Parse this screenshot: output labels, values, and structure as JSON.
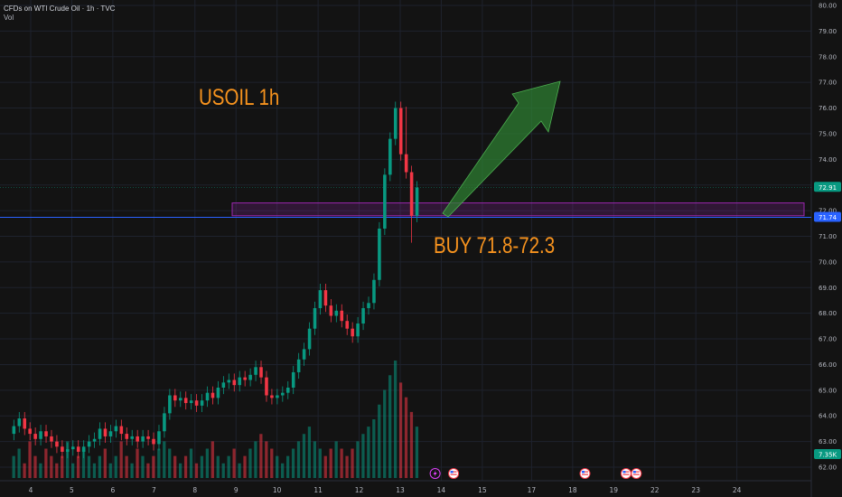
{
  "header": {
    "symbol_title": "CFDs on WTI Crude Oil · 1h · TVC",
    "volume_label": "Vol"
  },
  "annotations": {
    "title": "USOIL 1h",
    "buy_label": "BUY 71.8-72.3",
    "buy_zone": [
      71.8,
      72.3
    ]
  },
  "price_tags": [
    {
      "label": "72.91",
      "value": 72.91,
      "color": "#089981"
    },
    {
      "label": "71.74",
      "value": 71.74,
      "color": "#2962ff"
    },
    {
      "label": "7.35K",
      "value": 7350,
      "color": "#089981",
      "axis": "volume"
    }
  ],
  "colors": {
    "up": "#089981",
    "down": "#f23645",
    "zone": "#9c27b0",
    "arrow": "#2e7d32",
    "hline": "#2962ff",
    "text_orange": "#f7931e"
  },
  "event_icons": [
    {
      "icon": "lightning-icon",
      "day": 13.85
    },
    {
      "icon": "us-flag-icon",
      "day": 14.3
    },
    {
      "icon": "us-flag-icon",
      "day": 17.5
    },
    {
      "icon": "us-flag-icon",
      "day": 18.5
    },
    {
      "icon": "us-flag-icon",
      "day": 18.75
    }
  ],
  "chart_data": {
    "type": "candlestick",
    "title": "CFDs on WTI Crude Oil · 1h · TVC",
    "y_ticks": [
      "80.00",
      "79.00",
      "78.00",
      "77.00",
      "76.00",
      "75.00",
      "74.00",
      "73.00",
      "72.00",
      "71.00",
      "70.00",
      "69.00",
      "68.00",
      "67.00",
      "66.00",
      "65.00",
      "64.00",
      "63.00",
      "62.00"
    ],
    "ylim": [
      61.5,
      80.2
    ],
    "x_ticks": [
      "4",
      "5",
      "6",
      "7",
      "8",
      "9",
      "10",
      "11",
      "12",
      "13",
      "14",
      "15",
      "17",
      "18",
      "19",
      "22",
      "23",
      "24"
    ],
    "x_tick_days": [
      4,
      5,
      6,
      7,
      8,
      9,
      10,
      11,
      12,
      13,
      14,
      15,
      16.2,
      17.2,
      18.2,
      19.2,
      20.2,
      21.2
    ],
    "candles": [
      {
        "o": 63.3,
        "c": 63.6
      },
      {
        "o": 63.6,
        "c": 63.9
      },
      {
        "o": 63.9,
        "c": 63.5
      },
      {
        "o": 63.5,
        "c": 63.3
      },
      {
        "o": 63.3,
        "c": 63.1
      },
      {
        "o": 63.1,
        "c": 63.4
      },
      {
        "o": 63.4,
        "c": 63.2
      },
      {
        "o": 63.2,
        "c": 63.0
      },
      {
        "o": 63.0,
        "c": 62.8
      },
      {
        "o": 62.8,
        "c": 62.6
      },
      {
        "o": 62.6,
        "c": 62.7
      },
      {
        "o": 62.7,
        "c": 62.8
      },
      {
        "o": 62.8,
        "c": 62.6
      },
      {
        "o": 62.6,
        "c": 62.8
      },
      {
        "o": 62.8,
        "c": 63.0
      },
      {
        "o": 63.0,
        "c": 63.1
      },
      {
        "o": 63.1,
        "c": 63.5
      },
      {
        "o": 63.5,
        "c": 63.2
      },
      {
        "o": 63.2,
        "c": 63.4
      },
      {
        "o": 63.4,
        "c": 63.6
      },
      {
        "o": 63.6,
        "c": 63.3
      },
      {
        "o": 63.3,
        "c": 63.1
      },
      {
        "o": 63.1,
        "c": 63.2
      },
      {
        "o": 63.2,
        "c": 63.0
      },
      {
        "o": 63.0,
        "c": 63.2
      },
      {
        "o": 63.2,
        "c": 63.1
      },
      {
        "o": 63.1,
        "c": 62.9
      },
      {
        "o": 62.9,
        "c": 63.4
      },
      {
        "o": 63.4,
        "c": 64.1
      },
      {
        "o": 64.1,
        "c": 64.8
      },
      {
        "o": 64.8,
        "c": 64.6
      },
      {
        "o": 64.6,
        "c": 64.7
      },
      {
        "o": 64.7,
        "c": 64.5
      },
      {
        "o": 64.5,
        "c": 64.6
      },
      {
        "o": 64.6,
        "c": 64.4
      },
      {
        "o": 64.4,
        "c": 64.6
      },
      {
        "o": 64.6,
        "c": 64.9
      },
      {
        "o": 64.9,
        "c": 64.7
      },
      {
        "o": 64.7,
        "c": 65.1
      },
      {
        "o": 65.1,
        "c": 65.3
      },
      {
        "o": 65.3,
        "c": 65.4
      },
      {
        "o": 65.4,
        "c": 65.2
      },
      {
        "o": 65.2,
        "c": 65.5
      },
      {
        "o": 65.5,
        "c": 65.4
      },
      {
        "o": 65.4,
        "c": 65.6
      },
      {
        "o": 65.6,
        "c": 65.9
      },
      {
        "o": 65.9,
        "c": 65.5
      },
      {
        "o": 65.5,
        "c": 64.8
      },
      {
        "o": 64.8,
        "c": 64.7
      },
      {
        "o": 64.7,
        "c": 64.8
      },
      {
        "o": 64.8,
        "c": 64.9
      },
      {
        "o": 64.9,
        "c": 65.1
      },
      {
        "o": 65.1,
        "c": 65.7
      },
      {
        "o": 65.7,
        "c": 66.2
      },
      {
        "o": 66.2,
        "c": 66.6
      },
      {
        "o": 66.6,
        "c": 67.4
      },
      {
        "o": 67.4,
        "c": 68.2
      },
      {
        "o": 68.2,
        "c": 68.9
      },
      {
        "o": 68.9,
        "c": 68.3
      },
      {
        "o": 68.3,
        "c": 67.9
      },
      {
        "o": 67.9,
        "c": 68.1
      },
      {
        "o": 68.1,
        "c": 67.7
      },
      {
        "o": 67.7,
        "c": 67.4
      },
      {
        "o": 67.4,
        "c": 67.1
      },
      {
        "o": 67.1,
        "c": 67.6
      },
      {
        "o": 67.6,
        "c": 68.2
      },
      {
        "o": 68.2,
        "c": 68.4
      },
      {
        "o": 68.4,
        "c": 69.3
      },
      {
        "o": 69.3,
        "c": 71.3
      },
      {
        "o": 71.3,
        "c": 73.4
      },
      {
        "o": 73.4,
        "c": 74.8
      },
      {
        "o": 74.8,
        "c": 76.0
      },
      {
        "o": 76.0,
        "c": 74.2
      },
      {
        "o": 74.2,
        "c": 73.5
      },
      {
        "o": 73.5,
        "c": 71.8
      },
      {
        "o": 71.8,
        "c": 72.9
      }
    ],
    "volume_levels": [
      3,
      4,
      2,
      5,
      3,
      2,
      4,
      3,
      2,
      3,
      5,
      2,
      3,
      4,
      3,
      2,
      3,
      4,
      2,
      3,
      5,
      3,
      2,
      4,
      3,
      2,
      3,
      4,
      5,
      4,
      3,
      2,
      3,
      4,
      2,
      3,
      4,
      5,
      3,
      2,
      3,
      4,
      2,
      3,
      4,
      5,
      6,
      5,
      4,
      3,
      2,
      3,
      4,
      5,
      6,
      7,
      5,
      4,
      3,
      4,
      5,
      4,
      3,
      4,
      5,
      6,
      7,
      8,
      10,
      12,
      14,
      16,
      13,
      11,
      9,
      7
    ]
  }
}
